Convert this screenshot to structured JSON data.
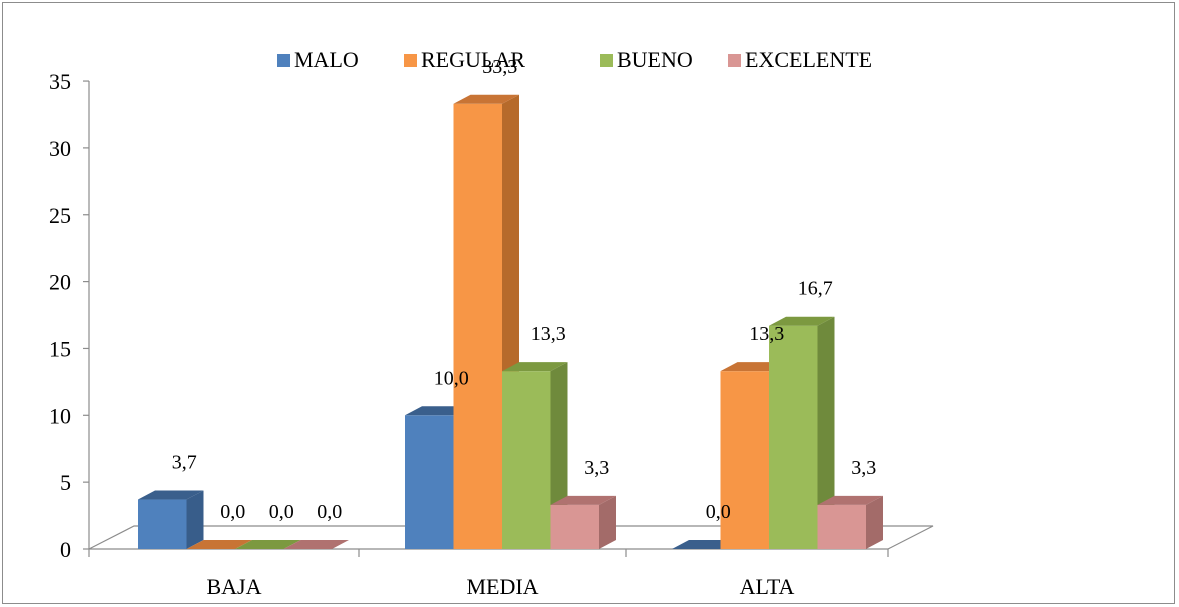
{
  "chart_data": {
    "type": "bar",
    "title": "",
    "xlabel": "",
    "ylabel": "",
    "categories": [
      "BAJA",
      "MEDIA",
      "ALTA"
    ],
    "series": [
      {
        "name": "MALO",
        "values": [
          3.7,
          10.0,
          0.0
        ],
        "labels": [
          "3,7",
          "10,0",
          "0,0"
        ]
      },
      {
        "name": "REGULAR",
        "values": [
          0.0,
          33.3,
          13.3
        ],
        "labels": [
          "0,0",
          "33,3",
          "13,3"
        ]
      },
      {
        "name": "BUENO",
        "values": [
          0.0,
          13.3,
          16.7
        ],
        "labels": [
          "0,0",
          "13,3",
          "16,7"
        ]
      },
      {
        "name": "EXCELENTE",
        "values": [
          0.0,
          3.3,
          3.3
        ],
        "labels": [
          "0,0",
          "3,3",
          "3,3"
        ]
      }
    ],
    "ylim": [
      0,
      35
    ],
    "yticks": [
      "0",
      "5",
      "10",
      "15",
      "20",
      "25",
      "30",
      "35"
    ],
    "legend": "top",
    "grid": false,
    "colors": {
      "MALO": {
        "front": "#4f81bd",
        "side": "#385d8a",
        "top": "#3a5f8c"
      },
      "REGULAR": {
        "front": "#f79646",
        "side": "#b66a2b",
        "top": "#c87435"
      },
      "BUENO": {
        "front": "#9bbb59",
        "side": "#6f8a3c",
        "top": "#7c9940"
      },
      "EXCELENTE": {
        "front": "#d99694",
        "side": "#a36b69",
        "top": "#b07270"
      }
    }
  }
}
